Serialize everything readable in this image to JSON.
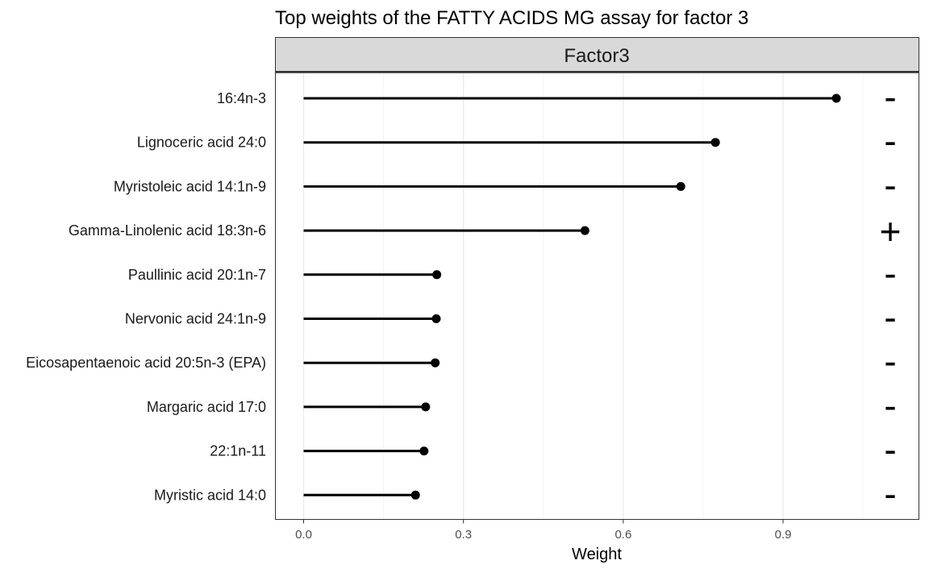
{
  "chart_data": {
    "type": "lollipop",
    "title": "Top weights of the FATTY ACIDS MG assay for factor 3",
    "facet": "Factor3",
    "xlabel": "Weight",
    "ylabel": "",
    "xlim": [
      -0.053,
      1.155
    ],
    "x_ticks": [
      0.0,
      0.3,
      0.6,
      0.9
    ],
    "x_tick_labels": [
      "0.0",
      "0.3",
      "0.6",
      "0.9"
    ],
    "grid": true,
    "legend": "none",
    "categories": [
      "16:4n-3",
      "Lignoceric acid 24:0",
      "Myristoleic acid 14:1n-9",
      "Gamma-Linolenic acid 18:3n-6",
      "Paullinic acid 20:1n-7",
      "Nervonic acid 24:1n-9",
      "Eicosapentaenoic acid 20:5n-3 (EPA)",
      "Margaric acid 17:0",
      "22:1n-11",
      "Myristic acid 14:0"
    ],
    "values": [
      1.0,
      0.773,
      0.708,
      0.528,
      0.25,
      0.249,
      0.247,
      0.229,
      0.226,
      0.21
    ],
    "signs": [
      "-",
      "-",
      "-",
      "+",
      "-",
      "-",
      "-",
      "-",
      "-",
      "-"
    ],
    "colors": {
      "strip_fill": "#d9d9d9",
      "strip_border": "#333333",
      "panel_border": "#333333",
      "grid_major": "#ebebeb",
      "grid_minor": "#f4f4f4",
      "mark": "#000000"
    }
  }
}
